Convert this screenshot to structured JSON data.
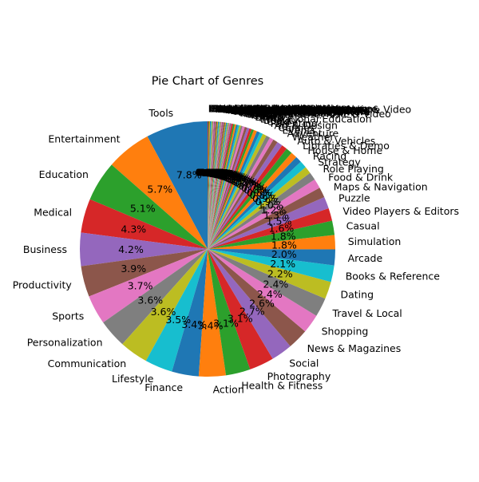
{
  "chart_data": {
    "type": "pie",
    "title": "Pie Chart of Genres",
    "start_angle_deg": 90,
    "direction": "counterclockwise",
    "legend": "none",
    "grid": false,
    "slices": [
      {
        "label": "Tools",
        "value": 7.8,
        "pct_label": "7.8%",
        "color": "#1f77b4"
      },
      {
        "label": "Entertainment",
        "value": 5.7,
        "pct_label": "5.7%",
        "color": "#ff7f0e"
      },
      {
        "label": "Education",
        "value": 5.1,
        "pct_label": "5.1%",
        "color": "#2ca02c"
      },
      {
        "label": "Medical",
        "value": 4.3,
        "pct_label": "4.3%",
        "color": "#d62728"
      },
      {
        "label": "Business",
        "value": 4.2,
        "pct_label": "4.2%",
        "color": "#9467bd"
      },
      {
        "label": "Productivity",
        "value": 3.9,
        "pct_label": "3.9%",
        "color": "#8c564b"
      },
      {
        "label": "Sports",
        "value": 3.7,
        "pct_label": "3.7%",
        "color": "#e377c2"
      },
      {
        "label": "Personalization",
        "value": 3.6,
        "pct_label": "3.6%",
        "color": "#7f7f7f"
      },
      {
        "label": "Communication",
        "value": 3.6,
        "pct_label": "3.6%",
        "color": "#bcbd22"
      },
      {
        "label": "Lifestyle",
        "value": 3.5,
        "pct_label": "3.5%",
        "color": "#17becf"
      },
      {
        "label": "Finance",
        "value": 3.4,
        "pct_label": "3.4%",
        "color": "#1f77b4"
      },
      {
        "label": "Action",
        "value": 3.4,
        "pct_label": "3.4%",
        "color": "#ff7f0e"
      },
      {
        "label": "Health & Fitness",
        "value": 3.1,
        "pct_label": "3.1%",
        "color": "#2ca02c"
      },
      {
        "label": "Photography",
        "value": 3.1,
        "pct_label": "3.1%",
        "color": "#d62728"
      },
      {
        "label": "Social",
        "value": 2.7,
        "pct_label": "2.7%",
        "color": "#9467bd"
      },
      {
        "label": "News & Magazines",
        "value": 2.6,
        "pct_label": "2.6%",
        "color": "#8c564b"
      },
      {
        "label": "Shopping",
        "value": 2.4,
        "pct_label": "2.4%",
        "color": "#e377c2"
      },
      {
        "label": "Travel & Local",
        "value": 2.4,
        "pct_label": "2.4%",
        "color": "#7f7f7f"
      },
      {
        "label": "Dating",
        "value": 2.2,
        "pct_label": "2.2%",
        "color": "#bcbd22"
      },
      {
        "label": "Books & Reference",
        "value": 2.1,
        "pct_label": "2.1%",
        "color": "#17becf"
      },
      {
        "label": "Arcade",
        "value": 2.0,
        "pct_label": "2.0%",
        "color": "#1f77b4"
      },
      {
        "label": "Simulation",
        "value": 1.8,
        "pct_label": "1.8%",
        "color": "#ff7f0e"
      },
      {
        "label": "Casual",
        "value": 1.8,
        "pct_label": "1.8%",
        "color": "#2ca02c"
      },
      {
        "label": "Video Players & Editors",
        "value": 1.6,
        "pct_label": "1.6%",
        "color": "#d62728"
      },
      {
        "label": "Puzzle",
        "value": 1.5,
        "pct_label": "1.5%",
        "color": "#9467bd"
      },
      {
        "label": "Maps & Navigation",
        "value": 1.3,
        "pct_label": "1.3%",
        "color": "#8c564b"
      },
      {
        "label": "Food & Drink",
        "value": 1.2,
        "pct_label": "1.2%",
        "color": "#e377c2"
      },
      {
        "label": "Role Playing",
        "value": 1.0,
        "pct_label": "1.0%",
        "color": "#7f7f7f"
      },
      {
        "label": "Strategy",
        "value": 0.9,
        "pct_label": "0.9%",
        "color": "#bcbd22"
      },
      {
        "label": "Racing",
        "value": 0.9,
        "pct_label": "0.9%",
        "color": "#17becf"
      },
      {
        "label": "House & Home",
        "value": 0.8,
        "pct_label": "0.8%",
        "color": "#1f77b4"
      },
      {
        "label": "Libraries & Demo",
        "value": 0.8,
        "pct_label": "0.8%",
        "color": "#ff7f0e"
      },
      {
        "label": "Auto & Vehicles",
        "value": 0.8,
        "pct_label": "0.8%",
        "color": "#2ca02c"
      },
      {
        "label": "Weather",
        "value": 0.7,
        "pct_label": "0.7%",
        "color": "#d62728"
      },
      {
        "label": "Adventure",
        "value": 0.7,
        "pct_label": "0.7%",
        "color": "#9467bd"
      },
      {
        "label": "Events",
        "value": 0.6,
        "pct_label": "0.6%",
        "color": "#8c564b"
      },
      {
        "label": "Comics",
        "value": 0.5,
        "pct_label": "0.5%",
        "color": "#e377c2"
      },
      {
        "label": "Art & Design",
        "value": 0.5,
        "pct_label": "0.5%",
        "color": "#7f7f7f"
      },
      {
        "label": "Parenting",
        "value": 0.5,
        "pct_label": "0.5%",
        "color": "#bcbd22"
      },
      {
        "label": "Card",
        "value": 0.4,
        "pct_label": "0.4%",
        "color": "#17becf"
      },
      {
        "label": "Beauty",
        "value": 0.4,
        "pct_label": "0.4%",
        "color": "#1f77b4"
      },
      {
        "label": "Educational;Education",
        "value": 0.4,
        "pct_label": "0.4%",
        "color": "#ff7f0e"
      },
      {
        "label": "Trivia",
        "value": 0.3,
        "pct_label": "0.3%",
        "color": "#2ca02c"
      },
      {
        "label": "Board",
        "value": 0.3,
        "pct_label": "0.3%",
        "color": "#d62728"
      },
      {
        "label": "Casino",
        "value": 0.3,
        "pct_label": "0.3%",
        "color": "#9467bd"
      },
      {
        "label": "Word",
        "value": 0.3,
        "pct_label": "0.3%",
        "color": "#8c564b"
      },
      {
        "label": "Educational",
        "value": 0.3,
        "pct_label": "0.3%",
        "color": "#e377c2"
      },
      {
        "label": "Entertainment;Music & Video",
        "value": 0.2,
        "pct_label": "0.2%",
        "color": "#7f7f7f"
      },
      {
        "label": "Music",
        "value": 0.2,
        "pct_label": "0.2%",
        "color": "#bcbd22"
      },
      {
        "label": "Casual;Pretend Play",
        "value": 0.2,
        "pct_label": "0.2%",
        "color": "#17becf"
      },
      {
        "label": "Education;Education",
        "value": 0.2,
        "pct_label": "0.2%",
        "color": "#1f77b4"
      },
      {
        "label": "Puzzle;Brain Games",
        "value": 0.2,
        "pct_label": "0.2%",
        "color": "#ff7f0e"
      },
      {
        "label": "Casual;Action & Adventure",
        "value": 0.2,
        "pct_label": "0.2%",
        "color": "#2ca02c"
      },
      {
        "label": "Arcade;Action & Adventure",
        "value": 0.2,
        "pct_label": "0.2%",
        "color": "#d62728"
      },
      {
        "label": "Sports;Action & Adventure",
        "value": 0.1,
        "pct_label": "0.1%",
        "color": "#9467bd"
      },
      {
        "label": "Education;Pretend Play",
        "value": 0.1,
        "pct_label": "0.1%",
        "color": "#8c564b"
      },
      {
        "label": "Educational;Pretend Play",
        "value": 0.1,
        "pct_label": "0.1%",
        "color": "#e377c2"
      },
      {
        "label": "Entertainment;Brain Games",
        "value": 0.1,
        "pct_label": "0.1%",
        "color": "#7f7f7f"
      },
      {
        "label": "Board;Brain Games",
        "value": 0.1,
        "pct_label": "0.1%",
        "color": "#bcbd22"
      },
      {
        "label": "Casual;Brain Games",
        "value": 0.1,
        "pct_label": "0.1%",
        "color": "#17becf"
      },
      {
        "label": "Action;Action & Adventure",
        "value": 0.1,
        "pct_label": "0.1%",
        "color": "#1f77b4"
      },
      {
        "label": "Racing;Action & Adventure",
        "value": 0.1,
        "pct_label": "0.1%",
        "color": "#ff7f0e"
      },
      {
        "label": "Simulation;Action & Adventure",
        "value": 0.1,
        "pct_label": "0.1%",
        "color": "#2ca02c"
      },
      {
        "label": "Role Playing;Pretend Play",
        "value": 0.1,
        "pct_label": "0.1%",
        "color": "#d62728"
      },
      {
        "label": "Education;Creativity",
        "value": 0.1,
        "pct_label": "0.1%",
        "color": "#9467bd"
      },
      {
        "label": "Entertainment;Pretend Play",
        "value": 0.1,
        "pct_label": "0.1%",
        "color": "#8c564b"
      },
      {
        "label": "Casual;Creativity",
        "value": 0.1,
        "pct_label": "0.1%",
        "color": "#e377c2"
      },
      {
        "label": "Education;Music & Video",
        "value": 0.1,
        "pct_label": "0.1%",
        "color": "#7f7f7f"
      },
      {
        "label": "Video Players & Editors;Music & Video",
        "value": 0.1,
        "pct_label": "0.1%",
        "color": "#bcbd22"
      },
      {
        "label": "Puzzle;Action & Adventure",
        "value": 0.1,
        "pct_label": "0.1%",
        "color": "#17becf"
      },
      {
        "label": "Educational;Creativity",
        "value": 0.1,
        "pct_label": "0.1%",
        "color": "#1f77b4"
      },
      {
        "label": "Educational;Action & Adventure",
        "value": 0.1,
        "pct_label": "0.1%",
        "color": "#ff7f0e"
      },
      {
        "label": "Casual;Music & Video",
        "value": 0.1,
        "pct_label": "0.1%",
        "color": "#2ca02c"
      },
      {
        "label": "Entertainment;Creativity",
        "value": 0.1,
        "pct_label": "0.1%",
        "color": "#d62728"
      },
      {
        "label": "Adventure;Action & Adventure",
        "value": 0.1,
        "pct_label": "0.1%",
        "color": "#9467bd"
      },
      {
        "label": "Music;Music & Video",
        "value": 0.1,
        "pct_label": "0.1%",
        "color": "#8c564b"
      },
      {
        "label": "Arcade;Pretend Play",
        "value": 0.1,
        "pct_label": "0.1%",
        "color": "#e377c2"
      },
      {
        "label": "Strategy;Action & Adventure",
        "value": 0.1,
        "pct_label": "0.1%",
        "color": "#7f7f7f"
      },
      {
        "label": "Parenting;Education",
        "value": 0.1,
        "pct_label": "0.1%",
        "color": "#bcbd22"
      },
      {
        "label": "Puzzle;Education",
        "value": 0.1,
        "pct_label": "0.1%",
        "color": "#17becf"
      },
      {
        "label": "Role Playing;Action & Adventure",
        "value": 0.1,
        "pct_label": "0.1%",
        "color": "#1f77b4"
      },
      {
        "label": "Casual;Education",
        "value": 0.1,
        "pct_label": "0.1%",
        "color": "#ff7f0e"
      },
      {
        "label": "Educational;Brain Games",
        "value": 0.1,
        "pct_label": "0.1%",
        "color": "#2ca02c"
      },
      {
        "label": "Health & Fitness;Education",
        "value": 0.1,
        "pct_label": "0.1%",
        "color": "#d62728"
      }
    ]
  }
}
